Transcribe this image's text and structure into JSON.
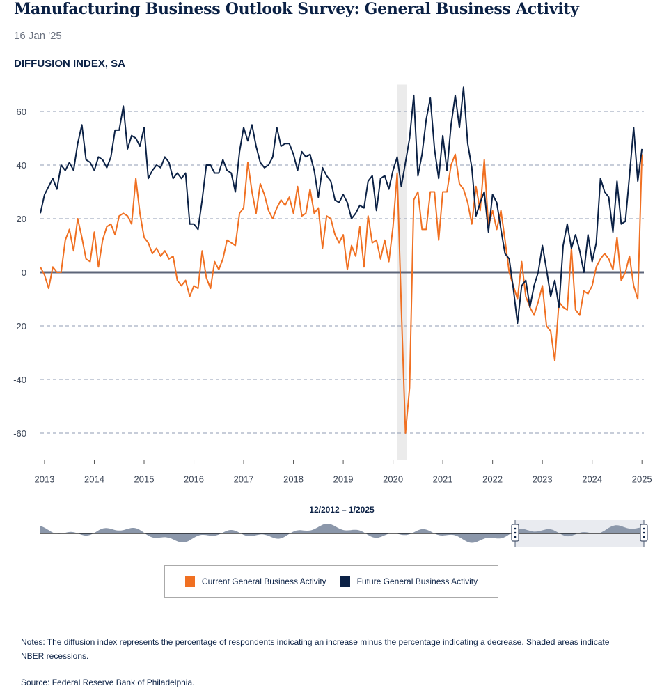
{
  "header": {
    "title": "Manufacturing Business Outlook Survey: General Business Activity",
    "date": "16 Jan '25",
    "subtitle": "DIFFUSION INDEX, SA"
  },
  "navigator": {
    "range_label": "12/2012 – 1/2025",
    "selected_from": "2022-06",
    "selected_to": "2025-01"
  },
  "legend": [
    {
      "label": "Current General Business Activity",
      "color": "#f07022"
    },
    {
      "label": "Future General Business Activity",
      "color": "#0b2145"
    }
  ],
  "footer": {
    "notes": "Notes: The diffusion index represents the percentage of respondents indicating an increase minus the percentage indicating a decrease. Shaded areas indicate NBER recessions.",
    "source": "Source: Federal Reserve Bank of Philadelphia."
  },
  "chart_data": {
    "type": "line",
    "title": "Manufacturing Business Outlook Survey: General Business Activity",
    "ylabel": "Diffusion index, SA",
    "start_month": "2012-12",
    "frequency": "monthly",
    "ylim": [
      -70,
      70
    ],
    "yticks": [
      -60,
      -40,
      -20,
      0,
      20,
      40,
      60
    ],
    "ytick_labels": [
      "-60",
      "-40",
      "-20",
      "0",
      "20",
      "40",
      "60"
    ],
    "xtick_labels": [
      "2013",
      "2014",
      "2015",
      "2016",
      "2017",
      "2018",
      "2019",
      "2020",
      "2021",
      "2022",
      "2023",
      "2024",
      "2025"
    ],
    "grid": true,
    "recessions": [
      {
        "from": "2020-02",
        "to": "2020-04"
      }
    ],
    "series": [
      {
        "name": "Current General Business Activity",
        "color": "#f07022",
        "values": [
          2,
          -1,
          -6,
          2,
          0,
          0,
          12,
          16,
          8,
          20,
          13,
          5,
          4,
          15,
          2,
          12,
          17,
          18,
          14,
          21,
          22,
          21,
          18,
          35,
          22,
          13,
          11,
          7,
          9,
          6,
          8,
          5,
          6,
          -3,
          -5,
          -3,
          -9,
          -5,
          -6,
          8,
          -2,
          -6,
          4,
          1,
          5,
          12,
          11,
          10,
          22,
          24,
          41,
          30,
          22,
          33,
          29,
          23,
          20,
          24,
          27,
          25,
          28,
          22,
          32,
          21,
          22,
          31,
          22,
          24,
          9,
          21,
          20,
          14,
          11,
          14,
          1,
          10,
          6,
          17,
          2,
          21,
          11,
          12,
          5,
          12,
          4,
          17,
          37,
          -13,
          -60,
          -43,
          27,
          30,
          16,
          16,
          30,
          30,
          12,
          30,
          30,
          40,
          44,
          33,
          31,
          26,
          18,
          32,
          23,
          42,
          17,
          23,
          16,
          23,
          12,
          0,
          -5,
          -10,
          4,
          -9,
          -13,
          -16,
          -11,
          -5,
          -20,
          -22,
          -33,
          -11,
          -13,
          -14,
          9,
          -14,
          -16,
          -7,
          -8,
          -5,
          2,
          5,
          7,
          5,
          1,
          13,
          -3,
          0,
          6,
          -5,
          -10,
          44
        ]
      },
      {
        "name": "Future General Business Activity",
        "color": "#0b2145",
        "values": [
          22,
          29,
          32,
          35,
          31,
          40,
          38,
          41,
          38,
          48,
          55,
          42,
          41,
          38,
          43,
          42,
          39,
          43,
          53,
          53,
          62,
          46,
          51,
          50,
          47,
          54,
          35,
          38,
          40,
          39,
          43,
          41,
          35,
          37,
          35,
          37,
          18,
          18,
          16,
          27,
          40,
          40,
          37,
          37,
          42,
          38,
          37,
          30,
          45,
          54,
          49,
          55,
          47,
          41,
          39,
          40,
          43,
          54,
          47,
          48,
          48,
          44,
          38,
          45,
          43,
          44,
          38,
          28,
          39,
          36,
          34,
          27,
          26,
          29,
          26,
          20,
          22,
          25,
          24,
          34,
          36,
          23,
          35,
          36,
          31,
          38,
          43,
          32,
          41,
          50,
          66,
          36,
          44,
          57,
          65,
          46,
          35,
          51,
          38,
          55,
          66,
          54,
          69,
          48,
          39,
          21,
          26,
          30,
          15,
          29,
          26,
          16,
          7,
          5,
          -6,
          -19,
          -5,
          -3,
          -13,
          -5,
          0,
          10,
          1,
          -9,
          -3,
          -13,
          10,
          18,
          9,
          14,
          8,
          0,
          14,
          4,
          11,
          35,
          30,
          28,
          15,
          34,
          18,
          19,
          36,
          54,
          34,
          46
        ]
      }
    ]
  }
}
